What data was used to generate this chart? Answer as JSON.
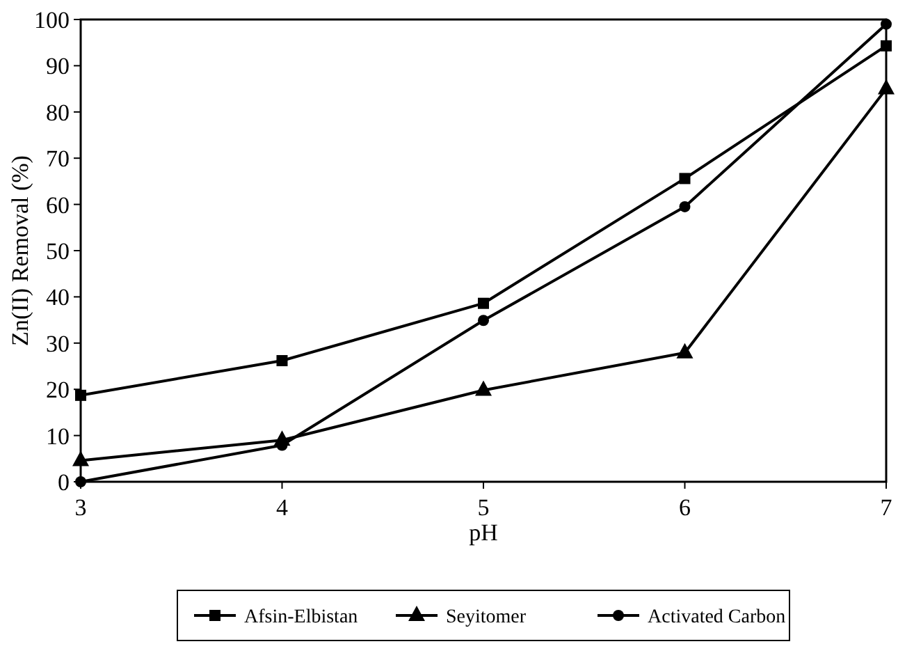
{
  "chart_data": {
    "type": "line",
    "xlabel": "pH",
    "ylabel": "Zn(II) Removal (%)",
    "x": [
      3,
      4,
      5,
      6,
      7
    ],
    "xlim": [
      3,
      7
    ],
    "xticks": [
      3,
      4,
      5,
      6,
      7
    ],
    "ylim": [
      0,
      100
    ],
    "yticks": [
      0,
      10,
      20,
      30,
      40,
      50,
      60,
      70,
      80,
      90,
      100
    ],
    "grid": false,
    "legend": "bottom",
    "line_style": "solid",
    "series": [
      {
        "name": "Afsin-Elbistan",
        "color": "#000000",
        "marker": "square",
        "values": [
          18.7,
          26.2,
          38.6,
          65.6,
          94.3
        ]
      },
      {
        "name": "Seyitomer",
        "color": "#000000",
        "marker": "triangle",
        "values": [
          4.6,
          9.0,
          19.8,
          27.9,
          85
        ]
      },
      {
        "name": "Activated Carbon",
        "color": "#000000",
        "marker": "circle",
        "values": [
          0,
          7.9,
          34.9,
          59.5,
          99
        ]
      }
    ]
  }
}
